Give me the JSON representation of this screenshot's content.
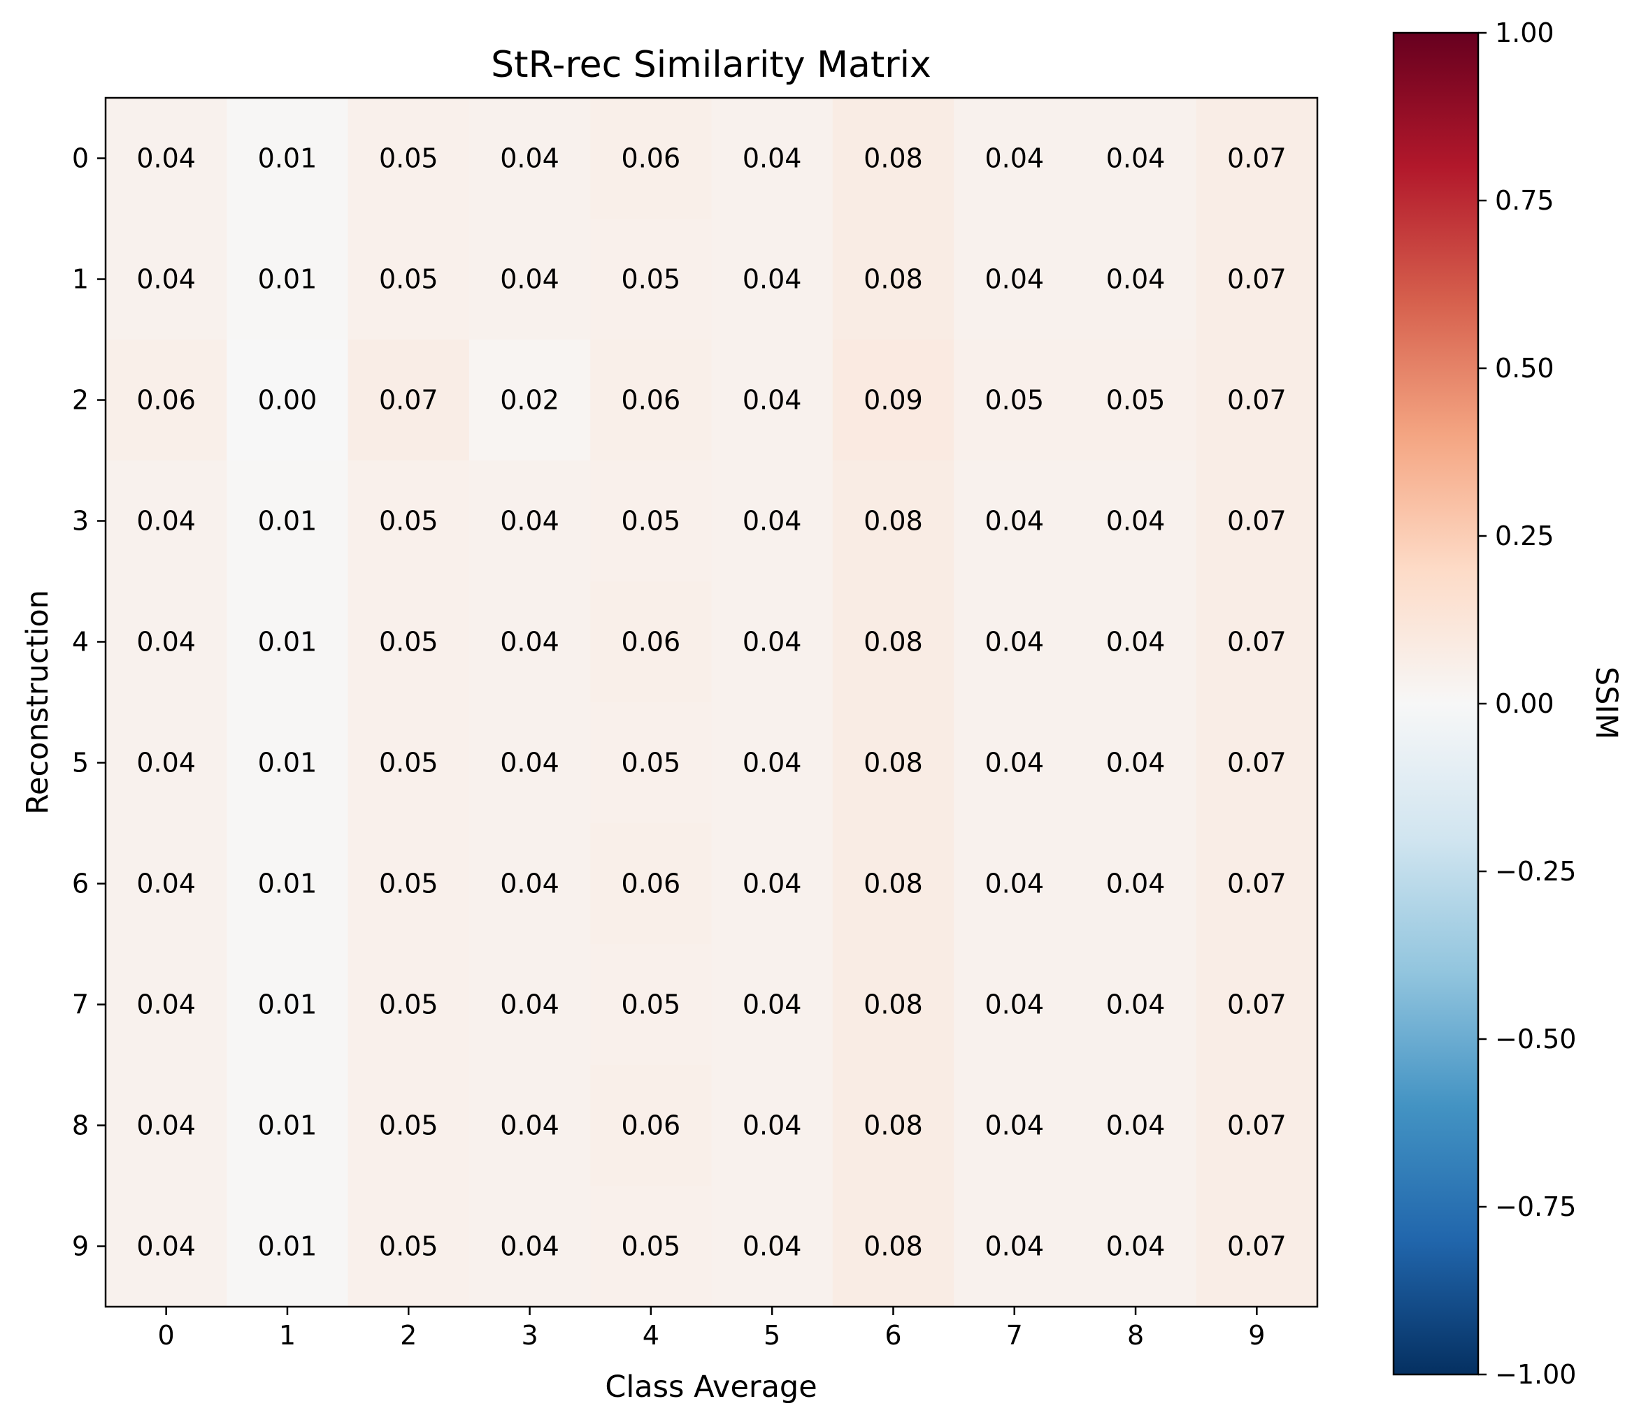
{
  "chart_data": {
    "type": "heatmap",
    "title": "StR-rec Similarity Matrix",
    "xlabel": "Class Average",
    "ylabel": "Reconstruction",
    "x_categories": [
      "0",
      "1",
      "2",
      "3",
      "4",
      "5",
      "6",
      "7",
      "8",
      "9"
    ],
    "y_categories": [
      "0",
      "1",
      "2",
      "3",
      "4",
      "5",
      "6",
      "7",
      "8",
      "9"
    ],
    "values": [
      [
        0.04,
        0.01,
        0.05,
        0.04,
        0.06,
        0.04,
        0.08,
        0.04,
        0.04,
        0.07
      ],
      [
        0.04,
        0.01,
        0.05,
        0.04,
        0.05,
        0.04,
        0.08,
        0.04,
        0.04,
        0.07
      ],
      [
        0.06,
        0.0,
        0.07,
        0.02,
        0.06,
        0.04,
        0.09,
        0.05,
        0.05,
        0.07
      ],
      [
        0.04,
        0.01,
        0.05,
        0.04,
        0.05,
        0.04,
        0.08,
        0.04,
        0.04,
        0.07
      ],
      [
        0.04,
        0.01,
        0.05,
        0.04,
        0.06,
        0.04,
        0.08,
        0.04,
        0.04,
        0.07
      ],
      [
        0.04,
        0.01,
        0.05,
        0.04,
        0.05,
        0.04,
        0.08,
        0.04,
        0.04,
        0.07
      ],
      [
        0.04,
        0.01,
        0.05,
        0.04,
        0.06,
        0.04,
        0.08,
        0.04,
        0.04,
        0.07
      ],
      [
        0.04,
        0.01,
        0.05,
        0.04,
        0.05,
        0.04,
        0.08,
        0.04,
        0.04,
        0.07
      ],
      [
        0.04,
        0.01,
        0.05,
        0.04,
        0.06,
        0.04,
        0.08,
        0.04,
        0.04,
        0.07
      ],
      [
        0.04,
        0.01,
        0.05,
        0.04,
        0.05,
        0.04,
        0.08,
        0.04,
        0.04,
        0.07
      ]
    ],
    "value_format_decimals": 2,
    "colormap": "RdBu_r",
    "colorbar": {
      "label": "SSIM",
      "range": [
        -1.0,
        1.0
      ],
      "ticks": [
        1.0,
        0.75,
        0.5,
        0.25,
        0.0,
        -0.25,
        -0.5,
        -0.75,
        -1.0
      ],
      "tick_labels": [
        "1.00",
        "0.75",
        "0.50",
        "0.25",
        "0.00",
        "−0.25",
        "−0.50",
        "−0.75",
        "−1.00"
      ]
    },
    "colors": {
      "neg_end": "#053061",
      "mid": "#f7f7f7",
      "pos_end": "#67001f"
    }
  }
}
